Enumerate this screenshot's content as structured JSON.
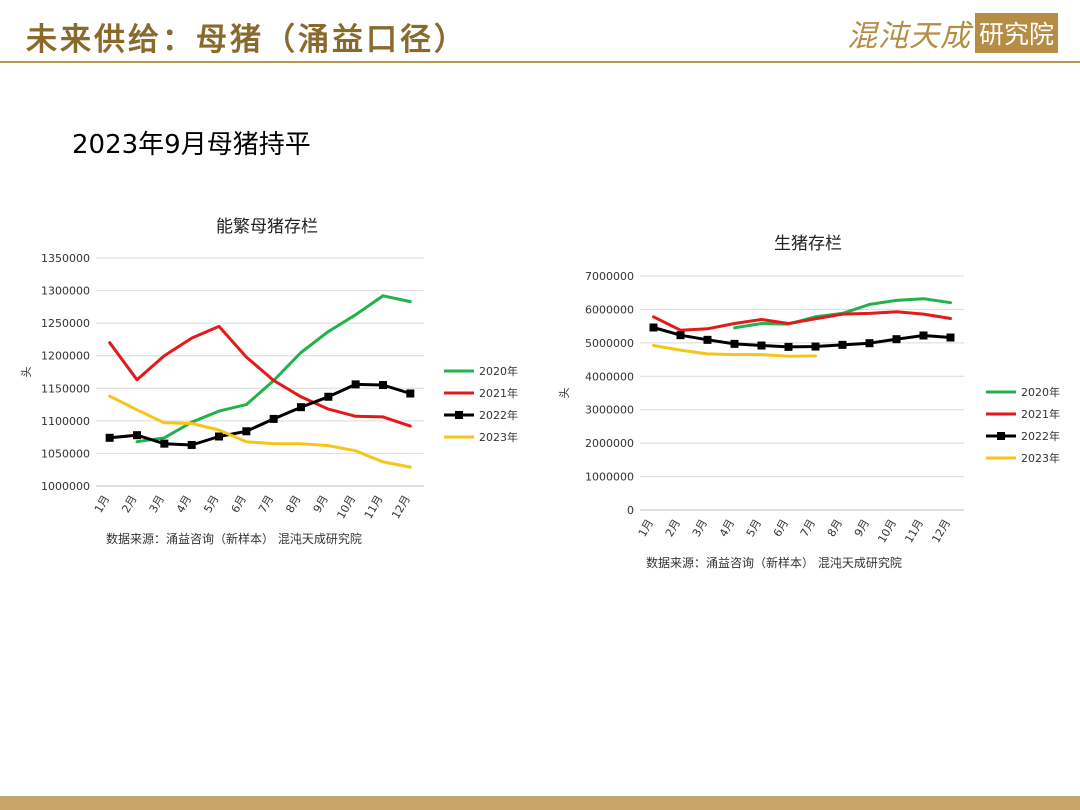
{
  "header": {
    "title": "未来供给：母猪（涌益口径）",
    "logo_script": "混沌天成",
    "logo_box": "研究院"
  },
  "subtitle": "2023年9月母猪持平",
  "colors": {
    "gold": "#b8964e",
    "s2020": "#22b14c",
    "s2021": "#e31a1c",
    "s2022": "#000000",
    "s2023": "#f5c518"
  },
  "chart_data": [
    {
      "type": "line",
      "title": "能繁母猪存栏",
      "ylabel": "头",
      "xlabel": "",
      "categories": [
        "1月",
        "2月",
        "3月",
        "4月",
        "5月",
        "6月",
        "7月",
        "8月",
        "9月",
        "10月",
        "11月",
        "12月"
      ],
      "ylim": [
        1000000,
        1350000
      ],
      "yticks": [
        "1000000",
        "1050000",
        "1100000",
        "1150000",
        "1200000",
        "1250000",
        "1300000",
        "1350000"
      ],
      "grid": true,
      "legend": "right",
      "source": "数据来源：涌益咨询（新样本） 混沌天成研究院",
      "series": [
        {
          "name": "2020年",
          "color": "#22b14c",
          "marker": false,
          "values": [
            null,
            1068000,
            1074000,
            1098000,
            1115000,
            1125000,
            1162000,
            1205000,
            1237000,
            1263000,
            1292000,
            1283000
          ]
        },
        {
          "name": "2021年",
          "color": "#e31a1c",
          "marker": false,
          "values": [
            1220000,
            1163000,
            1200000,
            1227000,
            1245000,
            1198000,
            1162000,
            1137000,
            1118000,
            1107000,
            1106000,
            1092000
          ]
        },
        {
          "name": "2022年",
          "color": "#000000",
          "marker": true,
          "values": [
            1074000,
            1078000,
            1065000,
            1063000,
            1076000,
            1084000,
            1103000,
            1121000,
            1137000,
            1156000,
            1155000,
            1142000
          ]
        },
        {
          "name": "2023年",
          "color": "#f5c518",
          "marker": false,
          "values": [
            1138000,
            1117000,
            1097000,
            1096000,
            1086000,
            1068000,
            1065000,
            1065000,
            1062000,
            1054000,
            1037000,
            1029000
          ]
        }
      ]
    },
    {
      "type": "line",
      "title": "生猪存栏",
      "ylabel": "头",
      "xlabel": "",
      "categories": [
        "1月",
        "2月",
        "3月",
        "4月",
        "5月",
        "6月",
        "7月",
        "8月",
        "9月",
        "10月",
        "11月",
        "12月"
      ],
      "ylim": [
        0,
        7000000
      ],
      "yticks": [
        "0",
        "1000000",
        "2000000",
        "3000000",
        "4000000",
        "5000000",
        "6000000",
        "7000000"
      ],
      "grid": true,
      "legend": "right",
      "source": "数据来源：涌益咨询（新样本） 混沌天成研究院",
      "series": [
        {
          "name": "2020年",
          "color": "#22b14c",
          "marker": false,
          "values": [
            null,
            null,
            null,
            5450000,
            5580000,
            5560000,
            5780000,
            5880000,
            6150000,
            6270000,
            6320000,
            6200000
          ]
        },
        {
          "name": "2021年",
          "color": "#e31a1c",
          "marker": false,
          "values": [
            5780000,
            5380000,
            5420000,
            5580000,
            5700000,
            5580000,
            5720000,
            5860000,
            5880000,
            5930000,
            5860000,
            5730000
          ]
        },
        {
          "name": "2022年",
          "color": "#000000",
          "marker": true,
          "values": [
            5460000,
            5230000,
            5090000,
            4970000,
            4920000,
            4880000,
            4890000,
            4940000,
            4990000,
            5110000,
            5220000,
            5160000
          ]
        },
        {
          "name": "2023年",
          "color": "#f5c518",
          "marker": false,
          "values": [
            4920000,
            4780000,
            4670000,
            4650000,
            4650000,
            4600000,
            4610000,
            null,
            null,
            null,
            null,
            null
          ]
        }
      ]
    }
  ]
}
